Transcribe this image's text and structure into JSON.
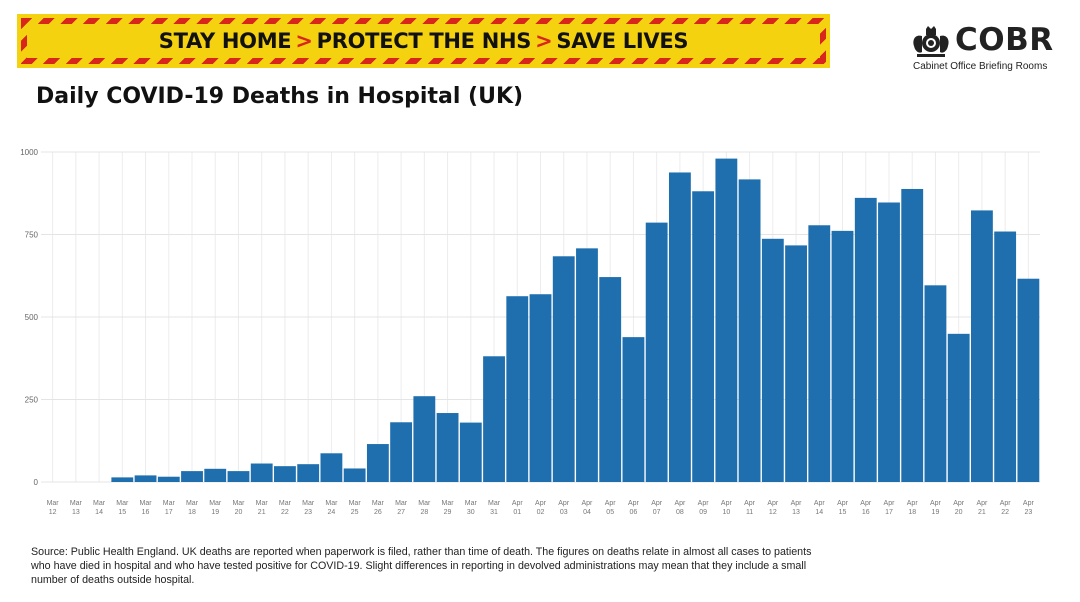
{
  "banner": {
    "part1": "STAY HOME",
    "part2": "PROTECT THE NHS",
    "part3": "SAVE LIVES",
    "separator": ">"
  },
  "logo": {
    "name": "COBR",
    "subtitle": "Cabinet Office Briefing Rooms",
    "icon": "royal-crest-icon"
  },
  "chart_data": {
    "type": "bar",
    "title": "Daily COVID-19 Deaths in Hospital (UK)",
    "xlabel": "",
    "ylabel": "",
    "ylim": [
      0,
      1000
    ],
    "yticks": [
      0,
      250,
      500,
      750,
      1000
    ],
    "ytick_labels": [
      "0",
      "250",
      "500",
      "750",
      "1000"
    ],
    "grid": true,
    "bar_color": "#1f6fae",
    "categories": [
      [
        "Mar",
        "12"
      ],
      [
        "Mar",
        "13"
      ],
      [
        "Mar",
        "14"
      ],
      [
        "Mar",
        "15"
      ],
      [
        "Mar",
        "16"
      ],
      [
        "Mar",
        "17"
      ],
      [
        "Mar",
        "18"
      ],
      [
        "Mar",
        "19"
      ],
      [
        "Mar",
        "20"
      ],
      [
        "Mar",
        "21"
      ],
      [
        "Mar",
        "22"
      ],
      [
        "Mar",
        "23"
      ],
      [
        "Mar",
        "24"
      ],
      [
        "Mar",
        "25"
      ],
      [
        "Mar",
        "26"
      ],
      [
        "Mar",
        "27"
      ],
      [
        "Mar",
        "28"
      ],
      [
        "Mar",
        "29"
      ],
      [
        "Mar",
        "30"
      ],
      [
        "Mar",
        "31"
      ],
      [
        "Apr",
        "01"
      ],
      [
        "Apr",
        "02"
      ],
      [
        "Apr",
        "03"
      ],
      [
        "Apr",
        "04"
      ],
      [
        "Apr",
        "05"
      ],
      [
        "Apr",
        "06"
      ],
      [
        "Apr",
        "07"
      ],
      [
        "Apr",
        "08"
      ],
      [
        "Apr",
        "09"
      ],
      [
        "Apr",
        "10"
      ],
      [
        "Apr",
        "11"
      ],
      [
        "Apr",
        "12"
      ],
      [
        "Apr",
        "13"
      ],
      [
        "Apr",
        "14"
      ],
      [
        "Apr",
        "15"
      ],
      [
        "Apr",
        "16"
      ],
      [
        "Apr",
        "17"
      ],
      [
        "Apr",
        "18"
      ],
      [
        "Apr",
        "19"
      ],
      [
        "Apr",
        "20"
      ],
      [
        "Apr",
        "21"
      ],
      [
        "Apr",
        "22"
      ],
      [
        "Apr",
        "23"
      ]
    ],
    "values": [
      0,
      0,
      0,
      14,
      20,
      16,
      33,
      40,
      33,
      56,
      48,
      54,
      87,
      41,
      115,
      181,
      260,
      209,
      180,
      381,
      563,
      569,
      684,
      708,
      621,
      439,
      786,
      938,
      881,
      980,
      917,
      737,
      717,
      778,
      761,
      861,
      847,
      888,
      596,
      449,
      823,
      759,
      616
    ]
  },
  "source": "Source: Public Health England.  UK deaths are reported when paperwork is filed, rather than time of death. The figures on deaths relate in almost all cases to patients who have died in hospital and who have tested positive for COVID-19. Slight differences in reporting in devolved administrations may mean that they include a small number of deaths outside hospital."
}
